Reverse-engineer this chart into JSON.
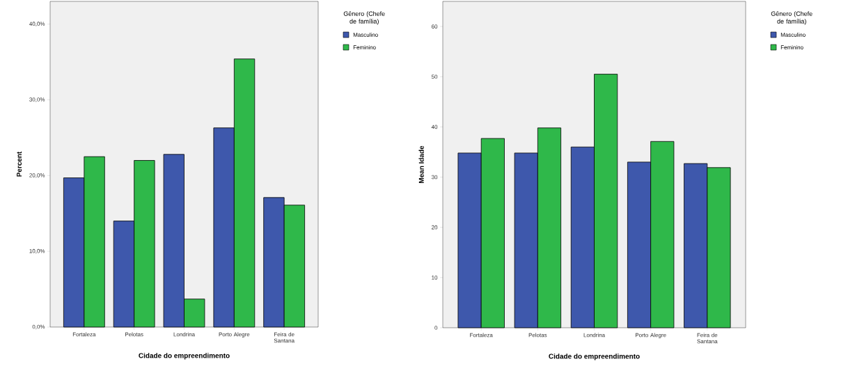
{
  "chart_data": [
    {
      "type": "bar",
      "xlabel": "Cidade do empreendimento",
      "ylabel": "Percent",
      "legend_title": "Gênero (Chefe de família)",
      "legend": "right",
      "categories": [
        "Fortaleza",
        "Pelotas",
        "Londrina",
        "Porto Alegre",
        "Feira de Santana"
      ],
      "series": [
        {
          "name": "Masculino",
          "color": "#3e58ac",
          "values": [
            19.7,
            14.0,
            22.8,
            26.3,
            17.1
          ]
        },
        {
          "name": "Feminino",
          "color": "#2fb84a",
          "values": [
            22.5,
            22.0,
            3.7,
            35.4,
            16.1
          ]
        }
      ],
      "ylim": [
        0,
        43
      ],
      "yticks": [
        {
          "value": 0,
          "label": "0,0%"
        },
        {
          "value": 10,
          "label": "10,0%"
        },
        {
          "value": 20,
          "label": "20,0%"
        },
        {
          "value": 30,
          "label": "30,0%"
        },
        {
          "value": 40,
          "label": "40,0%"
        }
      ]
    },
    {
      "type": "bar",
      "xlabel": "Cidade do empreendimento",
      "ylabel": "Mean Idade",
      "legend_title": "Gênero (Chefe de família)",
      "legend": "right",
      "categories": [
        "Fortaleza",
        "Pelotas",
        "Londrina",
        "Porto Alegre",
        "Feira de Santana"
      ],
      "series": [
        {
          "name": "Masculino",
          "color": "#3e58ac",
          "values": [
            34.8,
            34.8,
            36.0,
            33.0,
            32.7
          ]
        },
        {
          "name": "Feminino",
          "color": "#2fb84a",
          "values": [
            37.7,
            39.8,
            50.5,
            37.1,
            31.9
          ]
        }
      ],
      "ylim": [
        0,
        65
      ],
      "yticks": [
        0,
        10,
        20,
        30,
        40,
        50,
        60
      ]
    }
  ]
}
